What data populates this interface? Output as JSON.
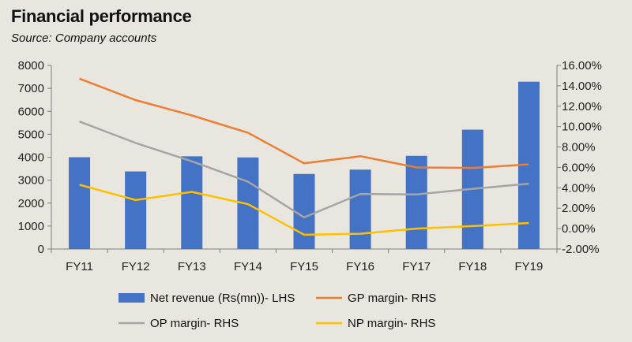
{
  "title": "Financial performance",
  "subtitle": "Source: Company accounts",
  "chart_data": {
    "type": "bar",
    "categories": [
      "FY11",
      "FY12",
      "FY13",
      "FY14",
      "FY15",
      "FY16",
      "FY17",
      "FY18",
      "FY19"
    ],
    "series": [
      {
        "name": "Net revenue (Rs(mn))- LHS",
        "type": "bar",
        "axis": "left",
        "color": "#4472c4",
        "values": [
          4000,
          3380,
          4040,
          3990,
          3270,
          3460,
          4060,
          5200,
          7290
        ]
      },
      {
        "name": "GP margin- RHS",
        "type": "line",
        "axis": "right",
        "color": "#ed7d31",
        "values": [
          14.7,
          12.6,
          11.1,
          9.4,
          6.4,
          7.1,
          6.0,
          5.95,
          6.3
        ]
      },
      {
        "name": "OP margin- RHS",
        "type": "line",
        "axis": "right",
        "color": "#a5a5a5",
        "values": [
          10.5,
          8.4,
          6.6,
          4.6,
          1.1,
          3.4,
          3.35,
          3.9,
          4.4
        ]
      },
      {
        "name": "NP margin- RHS",
        "type": "line",
        "axis": "right",
        "color": "#ffc000",
        "values": [
          4.3,
          2.8,
          3.6,
          2.4,
          -0.6,
          -0.5,
          0.0,
          0.25,
          0.55
        ]
      }
    ],
    "y_left": {
      "min": 0,
      "max": 8000,
      "step": 1000,
      "ticks": [
        "0",
        "1000",
        "2000",
        "3000",
        "4000",
        "5000",
        "6000",
        "7000",
        "8000"
      ]
    },
    "y_right": {
      "min": -2,
      "max": 16,
      "step": 2,
      "ticks": [
        "-2.00%",
        "0.00%",
        "2.00%",
        "4.00%",
        "6.00%",
        "8.00%",
        "10.00%",
        "12.00%",
        "14.00%",
        "16.00%"
      ]
    },
    "legend_position": "bottom",
    "grid": false
  }
}
